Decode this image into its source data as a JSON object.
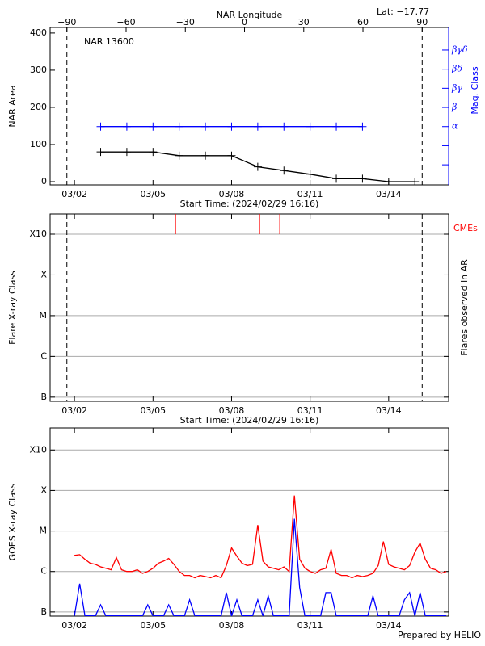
{
  "chart_data": [
    {
      "type": "line",
      "title": "NAR 13600",
      "lat_label": "Lat: −17.77",
      "ylabel": "NAR Area",
      "y2label": "Mag. Class",
      "x2label": "NAR Longitude",
      "xlabel": "Start Time: (2024/02/29 16:16)",
      "xlim": [
        1.07,
        16.29
      ],
      "xticks": [
        {
          "value": 2,
          "label": "03/02"
        },
        {
          "value": 5,
          "label": "03/05"
        },
        {
          "value": 8,
          "label": "03/08"
        },
        {
          "value": 11,
          "label": "03/11"
        },
        {
          "value": 14,
          "label": "03/14"
        }
      ],
      "x2lim": [
        -98.5,
        103.4
      ],
      "x2ticks": [
        {
          "value": -90,
          "label": "−90"
        },
        {
          "value": -60,
          "label": "−60"
        },
        {
          "value": -30,
          "label": "−30"
        },
        0,
        30,
        60,
        90
      ],
      "limb_lines": [
        -90,
        90
      ],
      "ylim": [
        -8.7,
        415
      ],
      "yticks": [
        0,
        100,
        200,
        300,
        400
      ],
      "y2lim": [
        -0.05,
        8.18
      ],
      "y2ticks": [
        {
          "value": 1,
          "label": null
        },
        {
          "value": 2,
          "label": null
        },
        {
          "value": 3,
          "label": "α"
        },
        {
          "value": 4,
          "label": "β"
        },
        {
          "value": 5,
          "label": "βγ"
        },
        {
          "value": 6,
          "label": "βδ"
        },
        {
          "value": 7,
          "label": "βγδ"
        }
      ],
      "y2color": "#0000ff",
      "series": [
        {
          "name": "NAR Area",
          "color": "#000000",
          "marker": "plus",
          "x": [
            3,
            4,
            5,
            6,
            7,
            8,
            9,
            10,
            11,
            12,
            13,
            14,
            15
          ],
          "values": [
            80,
            80,
            80,
            70,
            70,
            70,
            40,
            30,
            20,
            8,
            8,
            0,
            0
          ]
        },
        {
          "name": "Mag. Class",
          "color": "#0000ff",
          "marker": "plus",
          "axis": "y2",
          "x": [
            3,
            4,
            5,
            6,
            7,
            8,
            9,
            10,
            11,
            12,
            13
          ],
          "values": [
            3,
            3,
            3,
            3,
            3,
            3,
            3,
            3,
            3,
            3,
            3
          ]
        }
      ]
    },
    {
      "type": "event",
      "ylabel": "Flare X-ray Class",
      "y2label": "Flares observed in AR",
      "xlabel": "Start Time: (2024/02/29 16:16)",
      "xlim": [
        1.07,
        16.29
      ],
      "xticks": [
        {
          "value": 2,
          "label": "03/02"
        },
        {
          "value": 5,
          "label": "03/05"
        },
        {
          "value": 8,
          "label": "03/08"
        },
        {
          "value": 11,
          "label": "03/11"
        },
        {
          "value": 14,
          "label": "03/14"
        }
      ],
      "log_y": true,
      "ylim": [
        7.9e-08,
        0.00313
      ],
      "yticks": [
        {
          "value": 1e-07,
          "label": "B"
        },
        {
          "value": 1e-06,
          "label": "C"
        },
        {
          "value": 1e-05,
          "label": "M"
        },
        {
          "value": 0.0001,
          "label": "X"
        },
        {
          "value": 0.001,
          "label": "X10"
        }
      ],
      "grid": true,
      "events": {
        "name": "CMEs",
        "color": "#ff0000",
        "x": [
          5.86,
          9.07,
          9.84
        ]
      }
    },
    {
      "type": "line",
      "ylabel": "GOES X-ray Class",
      "xlim": [
        1.07,
        16.29
      ],
      "xticks": [
        {
          "value": 2,
          "label": "03/02"
        },
        {
          "value": 5,
          "label": "03/05"
        },
        {
          "value": 8,
          "label": "03/08"
        },
        {
          "value": 11,
          "label": "03/11"
        },
        {
          "value": 14,
          "label": "03/14"
        }
      ],
      "log_y": true,
      "ylim": [
        7.9e-08,
        0.0035
      ],
      "yticks": [
        {
          "value": 1e-07,
          "label": "B"
        },
        {
          "value": 1e-06,
          "label": "C"
        },
        {
          "value": 1e-05,
          "label": "M"
        },
        {
          "value": 0.0001,
          "label": "X"
        },
        {
          "value": 0.001,
          "label": "X10"
        }
      ],
      "grid": true,
      "x": [
        2.0,
        2.2,
        2.4,
        2.6,
        2.8,
        3.0,
        3.2,
        3.4,
        3.6,
        3.8,
        4.0,
        4.2,
        4.4,
        4.6,
        4.8,
        5.0,
        5.2,
        5.4,
        5.6,
        5.8,
        6.0,
        6.2,
        6.4,
        6.6,
        6.8,
        7.0,
        7.2,
        7.4,
        7.6,
        7.8,
        8.0,
        8.2,
        8.4,
        8.6,
        8.8,
        9.0,
        9.2,
        9.4,
        9.6,
        9.8,
        10.0,
        10.2,
        10.4,
        10.6,
        10.8,
        11.0,
        11.2,
        11.4,
        11.6,
        11.8,
        12.0,
        12.2,
        12.4,
        12.6,
        12.8,
        13.0,
        13.2,
        13.4,
        13.6,
        13.8,
        14.0,
        14.2,
        14.4,
        14.6,
        14.8,
        15.0,
        15.2,
        15.4,
        15.6,
        15.8,
        16.0,
        16.2
      ],
      "series": [
        {
          "color": "#ff0000",
          "values": [
            2.5e-06,
            2.6e-06,
            2e-06,
            1.6e-06,
            1.5e-06,
            1.3e-06,
            1.2e-06,
            1.1e-06,
            2.2e-06,
            1.1e-06,
            1e-06,
            1e-06,
            1.1e-06,
            9e-07,
            1e-06,
            1.2e-06,
            1.6e-06,
            1.8e-06,
            2.1e-06,
            1.5e-06,
            1e-06,
            8e-07,
            8e-07,
            7e-07,
            8e-07,
            7.5e-07,
            7e-07,
            8e-07,
            7e-07,
            1.4e-06,
            3.8e-06,
            2.4e-06,
            1.6e-06,
            1.4e-06,
            1.5e-06,
            1.4e-05,
            1.8e-06,
            1.3e-06,
            1.2e-06,
            1.1e-06,
            1.3e-06,
            1e-06,
            7.5e-05,
            2e-06,
            1.2e-06,
            1e-06,
            9e-07,
            1.1e-06,
            1.2e-06,
            3.5e-06,
            9e-07,
            8e-07,
            8e-07,
            7e-07,
            8e-07,
            7.5e-07,
            8e-07,
            9e-07,
            1.4e-06,
            5.5e-06,
            1.5e-06,
            1.3e-06,
            1.2e-06,
            1.1e-06,
            1.4e-06,
            3e-06,
            5e-06,
            2e-06,
            1.2e-06,
            1.1e-06,
            9e-07,
            1e-06
          ]
        },
        {
          "color": "#0000ff",
          "values": [
            8e-08,
            5e-07,
            8e-08,
            8e-08,
            8e-08,
            1.5e-07,
            8e-08,
            8e-08,
            8e-08,
            8e-08,
            8e-08,
            8e-08,
            8e-08,
            8e-08,
            1.5e-07,
            8e-08,
            8e-08,
            8e-08,
            1.5e-07,
            8e-08,
            8e-08,
            8e-08,
            2e-07,
            8e-08,
            8e-08,
            8e-08,
            8e-08,
            8e-08,
            8e-08,
            3e-07,
            8e-08,
            2e-07,
            8e-08,
            8e-08,
            8e-08,
            2e-07,
            8e-08,
            2.5e-07,
            8e-08,
            8e-08,
            8e-08,
            8e-08,
            2e-05,
            4e-07,
            8e-08,
            8e-08,
            8e-08,
            8e-08,
            3e-07,
            3e-07,
            8e-08,
            8e-08,
            8e-08,
            8e-08,
            8e-08,
            8e-08,
            8e-08,
            2.5e-07,
            8e-08,
            8e-08,
            8e-08,
            8e-08,
            8e-08,
            2e-07,
            3e-07,
            8e-08,
            3e-07,
            8e-08,
            8e-08,
            8e-08,
            8e-08,
            8e-08
          ]
        }
      ]
    }
  ],
  "footer": "Prepared by HELIO"
}
